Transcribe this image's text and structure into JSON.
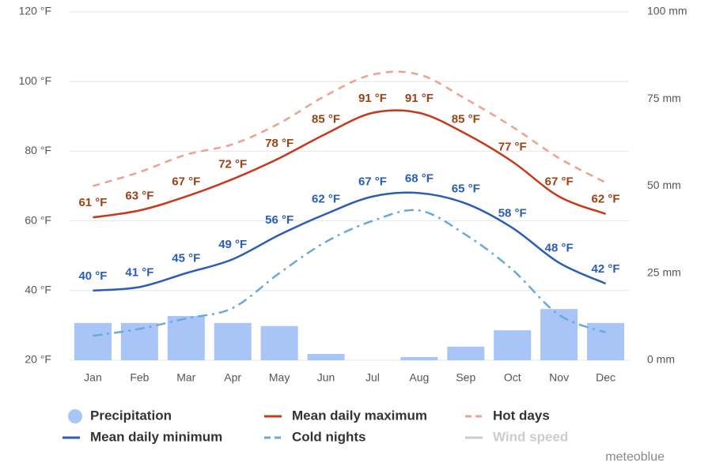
{
  "chart_data": {
    "type": "combo",
    "categories": [
      "Jan",
      "Feb",
      "Mar",
      "Apr",
      "May",
      "Jun",
      "Jul",
      "Aug",
      "Sep",
      "Oct",
      "Nov",
      "Dec"
    ],
    "ylim": [
      20,
      120
    ],
    "yticks": [
      {
        "value": 20,
        "label": "20 °F"
      },
      {
        "value": 40,
        "label": "40 °F"
      },
      {
        "value": 60,
        "label": "60 °F"
      },
      {
        "value": 80,
        "label": "80 °F"
      },
      {
        "value": 100,
        "label": "100 °F"
      },
      {
        "value": 120,
        "label": "120 °F"
      }
    ],
    "y2lim": [
      0,
      100
    ],
    "y2ticks": [
      {
        "value": 0,
        "label": "0 mm"
      },
      {
        "value": 25,
        "label": "25 mm"
      },
      {
        "value": 50,
        "label": "50 mm"
      },
      {
        "value": 75,
        "label": "75 mm"
      },
      {
        "value": 100,
        "label": "100 mm"
      }
    ],
    "grid": true,
    "series": [
      {
        "name": "Precipitation",
        "type": "bar",
        "axis": "y2",
        "color": "#a9c5f7",
        "values": [
          10.7,
          10.7,
          12.7,
          10.7,
          9.8,
          1.8,
          0,
          0.9,
          3.9,
          8.6,
          14.7,
          10.7
        ]
      },
      {
        "name": "Mean daily maximum",
        "type": "line",
        "dash": "solid",
        "color": "#c8381a",
        "label_color": "#9c4216",
        "values": [
          61,
          63,
          67,
          72,
          78,
          85,
          91,
          91,
          85,
          77,
          67,
          62
        ],
        "value_labels": [
          "61 °F",
          "63 °F",
          "67 °F",
          "72 °F",
          "78 °F",
          "85 °F",
          "91 °F",
          "91 °F",
          "85 °F",
          "77 °F",
          "67 °F",
          "62 °F"
        ]
      },
      {
        "name": "Hot days",
        "type": "line",
        "dash": "dashed",
        "color": "#f0a08c",
        "values": [
          70,
          74,
          79,
          82,
          88,
          96,
          102,
          102,
          95,
          87,
          78,
          71
        ]
      },
      {
        "name": "Mean daily minimum",
        "type": "line",
        "dash": "solid",
        "color": "#2a5cb8",
        "label_color": "#2a5cb8",
        "values": [
          40,
          41,
          45,
          49,
          56,
          62,
          67,
          68,
          65,
          58,
          48,
          42
        ],
        "value_labels": [
          "40 °F",
          "41 °F",
          "45 °F",
          "49 °F",
          "56 °F",
          "62 °F",
          "67 °F",
          "68 °F",
          "65 °F",
          "58 °F",
          "48 °F",
          "42 °F"
        ]
      },
      {
        "name": "Cold nights",
        "type": "line",
        "dash": "dash-dot",
        "color": "#6aa8dc",
        "values": [
          27,
          29,
          32,
          35,
          45,
          54,
          60,
          63,
          56,
          46,
          33,
          28
        ]
      },
      {
        "name": "Wind speed",
        "type": "line",
        "dash": "solid",
        "color": "#cccccc",
        "values": [
          null,
          null,
          null,
          null,
          null,
          null,
          null,
          null,
          null,
          null,
          null,
          null
        ]
      }
    ],
    "brand": "meteoblue"
  }
}
